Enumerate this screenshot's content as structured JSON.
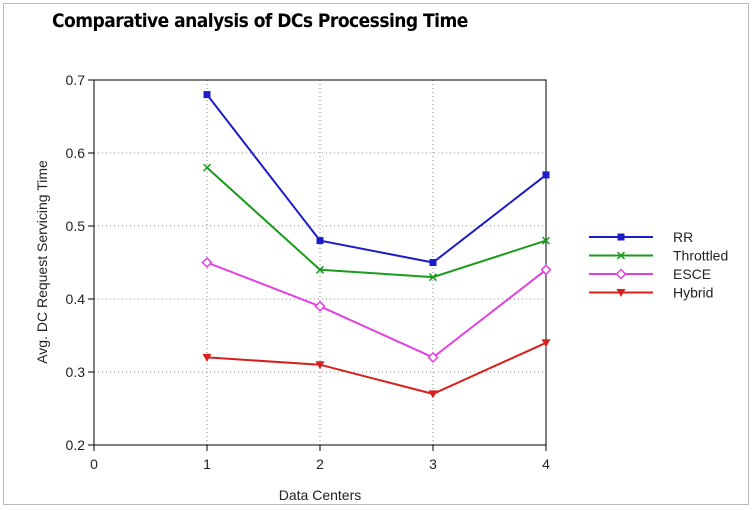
{
  "chart_data": {
    "type": "line",
    "title": "Comparative analysis of DCs Processing Time",
    "xlabel": "Data Centers",
    "ylabel": "Avg. DC Request Servicing Time",
    "xlim": [
      0,
      4
    ],
    "ylim": [
      0.2,
      0.7
    ],
    "x_ticks": [
      "0",
      "1",
      "2",
      "3",
      "4"
    ],
    "y_ticks": [
      "0.2",
      "0.3",
      "0.4",
      "0.5",
      "0.6",
      "0.7"
    ],
    "x": [
      1,
      2,
      3,
      4
    ],
    "grid": true,
    "legend_position": "right",
    "series": [
      {
        "name": "RR",
        "values": [
          0.68,
          0.48,
          0.45,
          0.57
        ],
        "color": "#1c1cc8",
        "marker": "square"
      },
      {
        "name": "Throttled",
        "values": [
          0.58,
          0.44,
          0.43,
          0.48
        ],
        "color": "#1a9a1a",
        "marker": "x"
      },
      {
        "name": "ESCE",
        "values": [
          0.45,
          0.39,
          0.32,
          0.44
        ],
        "color": "#e23fe2",
        "marker": "diamond"
      },
      {
        "name": "Hybrid",
        "values": [
          0.32,
          0.31,
          0.27,
          0.34
        ],
        "color": "#d8201c",
        "marker": "triangle-down"
      }
    ]
  }
}
